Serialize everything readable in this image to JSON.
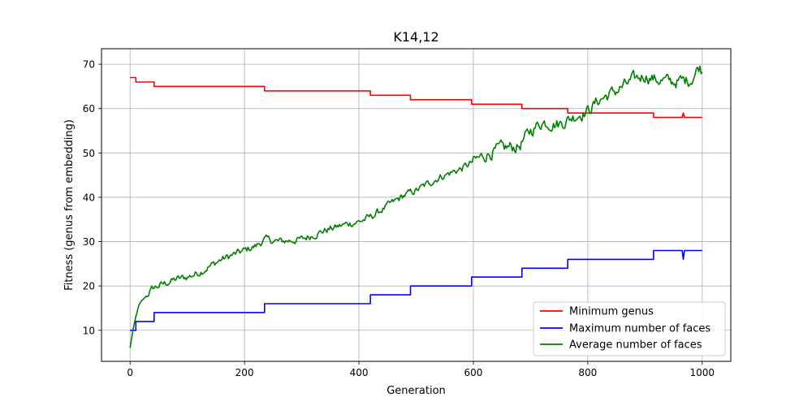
{
  "chart_data": {
    "type": "line",
    "title": "K14,12",
    "xlabel": "Generation",
    "ylabel": "Fitness (genus from embedding)",
    "xlim": [
      -50,
      1050
    ],
    "ylim": [
      3,
      73.5
    ],
    "xticks": [
      0,
      200,
      400,
      600,
      800,
      1000
    ],
    "yticks": [
      10,
      20,
      30,
      40,
      50,
      60,
      70
    ],
    "grid": true,
    "legend_position": "lower-right",
    "series": [
      {
        "name": "Minimum genus",
        "color": "#ff0000",
        "kind": "step",
        "x": [
          0,
          10,
          10,
          42,
          42,
          235,
          235,
          420,
          420,
          490,
          490,
          597,
          597,
          685,
          685,
          765,
          765,
          915,
          915,
          965,
          967,
          969,
          1000
        ],
        "y": [
          67,
          67,
          66,
          66,
          65,
          65,
          64,
          64,
          63,
          63,
          62,
          62,
          61,
          61,
          60,
          60,
          59,
          59,
          58,
          58,
          59,
          58,
          58
        ]
      },
      {
        "name": "Maximum number of faces",
        "color": "#0000ff",
        "kind": "step",
        "x": [
          0,
          10,
          10,
          42,
          42,
          235,
          235,
          420,
          420,
          490,
          490,
          597,
          597,
          685,
          685,
          765,
          765,
          915,
          915,
          965,
          967,
          969,
          1000
        ],
        "y": [
          10,
          10,
          12,
          12,
          14,
          14,
          16,
          16,
          18,
          18,
          20,
          20,
          22,
          22,
          24,
          24,
          26,
          26,
          28,
          28,
          26,
          28,
          28
        ]
      },
      {
        "name": "Average number of faces",
        "color": "#008000",
        "kind": "noisy",
        "x": [
          0,
          5,
          10,
          15,
          20,
          30,
          40,
          50,
          60,
          80,
          100,
          120,
          140,
          160,
          180,
          200,
          220,
          235,
          260,
          300,
          340,
          380,
          400,
          420,
          450,
          480,
          500,
          540,
          580,
          600,
          620,
          650,
          680,
          700,
          720,
          750,
          780,
          800,
          820,
          850,
          880,
          900,
          920,
          950,
          980,
          995,
          1000
        ],
        "y": [
          6,
          10,
          13,
          15.5,
          16.5,
          18,
          19.5,
          20,
          20.5,
          21.5,
          22,
          23,
          24.5,
          26,
          27,
          28,
          29,
          30.5,
          30,
          30.5,
          32.5,
          34,
          34.5,
          35.5,
          38,
          40.5,
          41.5,
          44.5,
          46.5,
          48,
          49.5,
          51,
          51.5,
          55,
          57,
          56.5,
          58.5,
          59.5,
          62,
          64,
          66.5,
          67.5,
          66.5,
          66,
          66.5,
          69.5,
          68.5
        ]
      }
    ]
  }
}
